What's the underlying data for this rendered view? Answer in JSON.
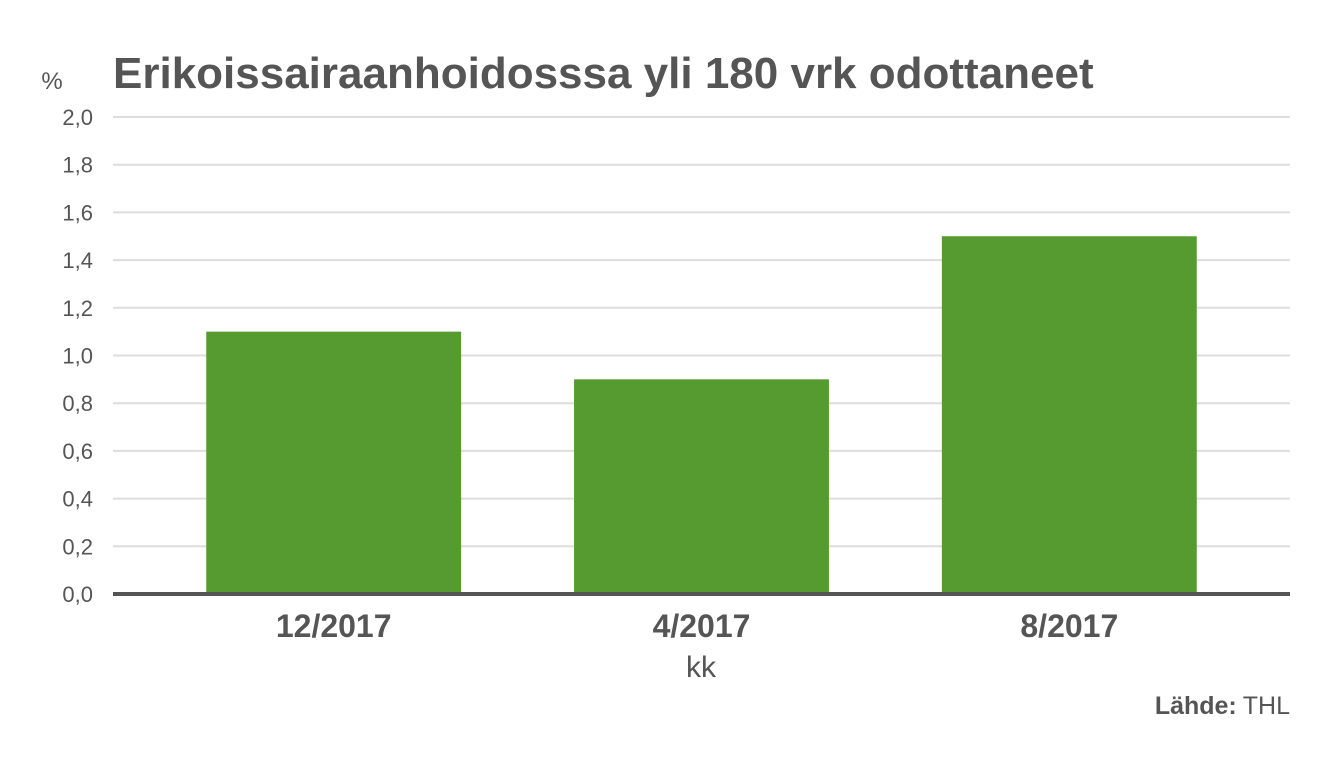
{
  "chart_data": {
    "type": "bar",
    "title": "Erikoissairaanhoidosssa yli 180 vrk odottaneet",
    "ylabel": "%",
    "xlabel": "kk",
    "categories": [
      "12/2017",
      "4/2017",
      "8/2017"
    ],
    "values": [
      1.1,
      0.9,
      1.5
    ],
    "ylim": [
      0,
      2.0
    ],
    "yticks": [
      0,
      0.2,
      0.4,
      0.6,
      0.8,
      1.0,
      1.2,
      1.4,
      1.6,
      1.8,
      2.0
    ],
    "ytick_labels": [
      "0,0",
      "0,2",
      "0,4",
      "0,6",
      "0,8",
      "1,0",
      "1,2",
      "1,4",
      "1,6",
      "1,8",
      "2,0"
    ],
    "grid": true,
    "legend": "none",
    "bar_color": "#559b2f"
  },
  "source": {
    "label": "Lähde:",
    "value": "THL"
  },
  "colors": {
    "text": "#555555",
    "grid": "#dddddd",
    "axis": "#555555"
  }
}
